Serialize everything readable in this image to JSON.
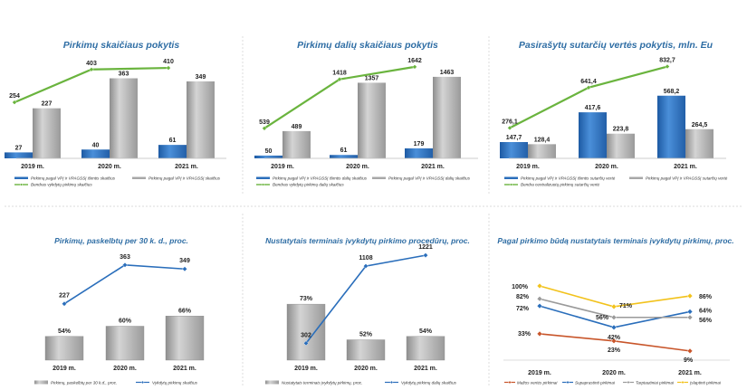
{
  "colors": {
    "blue": "#2a6ebb",
    "grey": "#a8a8a8",
    "green": "#6ab43e",
    "line": "#2a6ebb",
    "title": "#2e6da4",
    "orange": "#c8552a",
    "yellow": "#f2c21b",
    "lgrey": "#9a9a9a"
  },
  "chart_data": [
    {
      "type": "bar",
      "title": "Pirkimų skaičiaus pokytis",
      "categories": [
        "2019 m.",
        "2020 m.",
        "2021 m."
      ],
      "series": [
        {
          "name": "Pirkimų pagal VPĮ ir VPAGSSĮ išimtis skaičius",
          "kind": "bar",
          "color": "#2a6ebb",
          "values": [
            27,
            40,
            61
          ],
          "labels": [
            "27",
            "40",
            "61"
          ]
        },
        {
          "name": "Pirkimų pagal VPĮ ir VPAGSSĮ skaičius",
          "kind": "bar",
          "color": "#a8a8a8",
          "values": [
            227,
            363,
            349
          ],
          "labels": [
            "227",
            "363",
            "349"
          ]
        },
        {
          "name": "Bendras vykdytų pirkimų skaičius",
          "kind": "line",
          "color": "#6ab43e",
          "values": [
            254,
            403,
            410
          ],
          "labels": [
            "254",
            "403",
            "410"
          ]
        }
      ],
      "ylim": [
        0,
        480
      ]
    },
    {
      "type": "bar",
      "title": "Pirkimų dalių skaičiaus pokytis",
      "categories": [
        "2019 m.",
        "2020 m.",
        "2021 m."
      ],
      "series": [
        {
          "name": "Pirkimų pagal VPĮ ir VPAGSSĮ išimtis dalių skaičius",
          "kind": "bar",
          "color": "#2a6ebb",
          "values": [
            50,
            61,
            179
          ],
          "labels": [
            "50",
            "61",
            "179"
          ]
        },
        {
          "name": "Pirkimų pagal VPĮ ir VPAGSSĮ dalių skaičius",
          "kind": "bar",
          "color": "#a8a8a8",
          "values": [
            489,
            1357,
            1463
          ],
          "labels": [
            "489",
            "1357",
            "1463"
          ]
        },
        {
          "name": "Bendras vykdytų pirkimų dalių skaičius",
          "kind": "line",
          "color": "#6ab43e",
          "values": [
            539,
            1418,
            1642
          ],
          "labels": [
            "539",
            "1418",
            "1642"
          ]
        }
      ],
      "ylim": [
        0,
        1900
      ]
    },
    {
      "type": "bar",
      "title": "Pasirašytų sutarčių vertės pokytis, mln. Eu",
      "categories": [
        "2019 m.",
        "2020 m.",
        "2021 m."
      ],
      "series": [
        {
          "name": "Pirkimų pagal VPĮ ir VPAGSSĮ išimtis sutarčių vertė",
          "kind": "bar",
          "color": "#2a6ebb",
          "values": [
            147.7,
            417.6,
            568.2
          ],
          "labels": [
            "147,7",
            "417,6",
            "568,2"
          ]
        },
        {
          "name": "Pirkimų pagal VPĮ ir VPAGSSĮ sutarčių vertė",
          "kind": "bar",
          "color": "#a8a8a8",
          "values": [
            128.4,
            223.8,
            264.5
          ],
          "labels": [
            "128,4",
            "223,8",
            "264,5"
          ]
        },
        {
          "name": "Bendra centralizuotų pirkimų sutarčių vertė",
          "kind": "line",
          "color": "#6ab43e",
          "values": [
            276.1,
            641.4,
            832.7
          ],
          "labels": [
            "276,1",
            "641,4",
            "832,7"
          ]
        }
      ],
      "ylim": [
        0,
        960
      ]
    },
    {
      "type": "bar",
      "title": "Pirkimų, paskelbtų per 30 k. d., proc.",
      "categories": [
        "2019 m.",
        "2020 m.",
        "2021 m."
      ],
      "series": [
        {
          "name": "Pirkimų, paskelbtų per 30 k.d., proc.",
          "kind": "bar",
          "color": "#a8a8a8",
          "values": [
            54,
            60,
            66
          ],
          "labels": [
            "54%",
            "60%",
            "66%"
          ]
        },
        {
          "name": "Vykdytų pirkimų skaičius",
          "kind": "line",
          "color": "#2a6ebb",
          "values": [
            227,
            363,
            349
          ],
          "labels": [
            "227",
            "363",
            "349"
          ]
        }
      ]
    },
    {
      "type": "bar",
      "title": "Nustatytais terminais įvykdytų pirkimo procedūrų, proc.",
      "categories": [
        "2019 m.",
        "2020 m.",
        "2021 m."
      ],
      "series": [
        {
          "name": "Nustatytais terminais įvykdytų pirkimų, proc.",
          "kind": "bar",
          "color": "#a8a8a8",
          "values": [
            73,
            52,
            54
          ],
          "labels": [
            "73%",
            "52%",
            "54%"
          ]
        },
        {
          "name": "Vykdytų pirkimų dalių skaičius",
          "kind": "line",
          "color": "#2a6ebb",
          "values": [
            302,
            1108,
            1221
          ],
          "labels": [
            "302",
            "1108",
            "1221"
          ]
        }
      ]
    },
    {
      "type": "line",
      "title": "Pagal pirkimo būdą nustatytais terminais įvykdytų pirkimų, proc.",
      "categories": [
        "2019 m.",
        "2020 m.",
        "2021 m."
      ],
      "series": [
        {
          "name": "Mažos vertės pirkimai",
          "color": "#c8552a",
          "values": [
            33,
            23,
            9
          ],
          "labels": [
            "33%",
            "23%",
            "9%"
          ]
        },
        {
          "name": "Supaprastinti pirkimai",
          "color": "#2a6ebb",
          "values": [
            72,
            42,
            64
          ],
          "labels": [
            "72%",
            "42%",
            "64%"
          ]
        },
        {
          "name": "Tarptautiniai pirkimai",
          "color": "#9a9a9a",
          "values": [
            82,
            56,
            56
          ],
          "labels": [
            "82%",
            "56%",
            "56%"
          ]
        },
        {
          "name": "Įslaptinti pirkimai",
          "color": "#f2c21b",
          "values": [
            100,
            71,
            86
          ],
          "labels": [
            "100%",
            "71%",
            "86%"
          ]
        }
      ],
      "ylim": [
        0,
        110
      ]
    }
  ]
}
